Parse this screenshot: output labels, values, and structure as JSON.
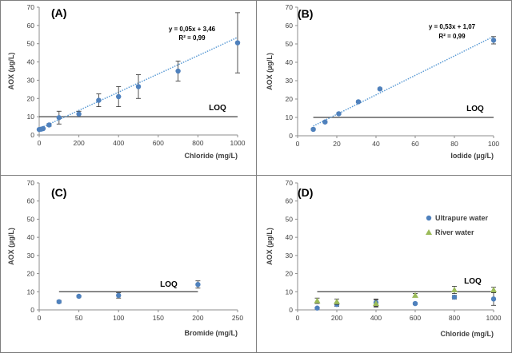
{
  "chart_data": [
    {
      "panel": "(A)",
      "type": "scatter",
      "xlabel": "Chloride (mg/L)",
      "ylabel": "AOX (µg/L)",
      "xlim": [
        0,
        1000
      ],
      "xticks": [
        0,
        200,
        400,
        600,
        800,
        1000
      ],
      "ylim": [
        0,
        70
      ],
      "yticks": [
        0,
        10,
        20,
        30,
        40,
        50,
        60,
        70
      ],
      "grid": false,
      "loq": {
        "value": 10,
        "label": "LOQ",
        "from": 0,
        "to": 1000
      },
      "equation": "y = 0,05x + 3,46",
      "r2": "R² = 0,99",
      "trendline": {
        "slope": 0.05,
        "intercept": 3.46,
        "from": 0,
        "to": 1000
      },
      "series": [
        {
          "marker": "circle",
          "color": "#4f81bd",
          "x": [
            0,
            10,
            20,
            50,
            100,
            200,
            300,
            400,
            500,
            700,
            1000
          ],
          "y": [
            3,
            3.2,
            3.5,
            5.5,
            9.5,
            11.5,
            19,
            21,
            26.5,
            35,
            50.5
          ],
          "err": [
            0,
            0,
            0,
            0.7,
            3.5,
            1.5,
            3.5,
            5.5,
            6.5,
            5.5,
            16.5
          ]
        }
      ]
    },
    {
      "panel": "(B)",
      "type": "scatter",
      "xlabel": "Iodide (µg/L)",
      "ylabel": "AOX (µg/L)",
      "xlim": [
        0,
        100
      ],
      "xticks": [
        0,
        20,
        40,
        60,
        80,
        100
      ],
      "ylim": [
        0,
        70
      ],
      "yticks": [
        0,
        10,
        20,
        30,
        40,
        50,
        60,
        70
      ],
      "grid": false,
      "loq": {
        "value": 10,
        "label": "LOQ",
        "from": 8,
        "to": 100
      },
      "equation": "y = 0,53x + 1,07",
      "r2": "R² = 0,99",
      "trendline": {
        "slope": 0.53,
        "intercept": 1.07,
        "from": 8,
        "to": 100
      },
      "series": [
        {
          "marker": "circle",
          "color": "#4f81bd",
          "x": [
            8,
            14,
            21,
            31,
            42,
            100
          ],
          "y": [
            3.5,
            7.5,
            12,
            18.5,
            25.5,
            52
          ],
          "err": [
            0.5,
            0.5,
            0.5,
            0.5,
            0.5,
            2
          ]
        }
      ]
    },
    {
      "panel": "(C)",
      "type": "scatter",
      "xlabel": "Bromide (mg/L)",
      "ylabel": "AOX (µg/L)",
      "xlim": [
        0,
        250
      ],
      "xticks": [
        0,
        50,
        100,
        150,
        200,
        250
      ],
      "ylim": [
        0,
        70
      ],
      "yticks": [
        0,
        10,
        20,
        30,
        40,
        50,
        60,
        70
      ],
      "grid": false,
      "loq": {
        "value": 10,
        "label": "LOQ",
        "from": 25,
        "to": 200
      },
      "series": [
        {
          "marker": "circle",
          "color": "#4f81bd",
          "x": [
            25,
            50,
            100,
            200
          ],
          "y": [
            4.5,
            7.5,
            8,
            14
          ],
          "err": [
            0.7,
            0.5,
            1.5,
            2
          ]
        }
      ]
    },
    {
      "panel": "(D)",
      "type": "scatter",
      "xlabel": "Chloride (mg/L)",
      "ylabel": "AOX (µg/L)",
      "xlim": [
        0,
        1000
      ],
      "xticks": [
        0,
        200,
        400,
        600,
        800,
        1000
      ],
      "ylim": [
        0,
        70
      ],
      "yticks": [
        0,
        10,
        20,
        30,
        40,
        50,
        60,
        70
      ],
      "grid": false,
      "loq": {
        "value": 10,
        "label": "LOQ",
        "from": 100,
        "to": 1000
      },
      "legend_position": "right",
      "series": [
        {
          "name": "Ultrapure water",
          "marker": "circle",
          "color": "#4f81bd",
          "x": [
            100,
            200,
            400,
            600,
            800,
            1000
          ],
          "y": [
            1,
            3,
            4,
            3.5,
            7,
            6
          ],
          "err": [
            0.5,
            1,
            2,
            0.5,
            1,
            3.5
          ]
        },
        {
          "name": "River water",
          "marker": "triangle",
          "color": "#9bbb59",
          "x": [
            100,
            200,
            400,
            600,
            800,
            1000
          ],
          "y": [
            5,
            4.5,
            3.5,
            8,
            11,
            11
          ],
          "err": [
            1.5,
            1.5,
            2,
            1,
            2,
            1.5
          ]
        }
      ]
    }
  ]
}
